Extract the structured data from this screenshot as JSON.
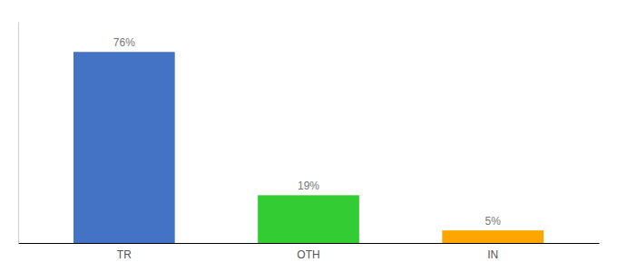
{
  "chart_data": {
    "type": "bar",
    "categories": [
      "TR",
      "OTH",
      "IN"
    ],
    "values": [
      76,
      19,
      5
    ],
    "value_labels": [
      "76%",
      "19%",
      "5%"
    ],
    "colors": [
      "#4472C4",
      "#33CC33",
      "#FFA500"
    ],
    "ylim": [
      0,
      88
    ],
    "data_labels": true,
    "tick_labels": "x"
  }
}
